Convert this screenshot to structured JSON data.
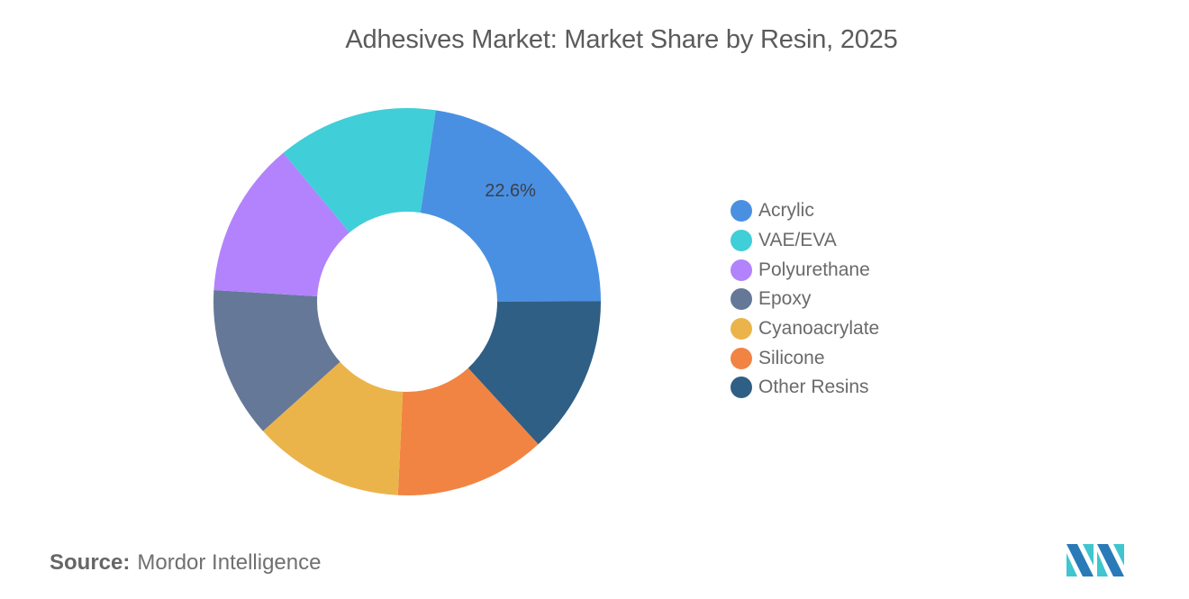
{
  "title": "Adhesives Market: Market Share by Resin, 2025",
  "source": {
    "label": "Source:",
    "value": "Mordor Intelligence"
  },
  "logo": {
    "name": "mordor-intelligence-logo",
    "colors": [
      "#2a7ab8",
      "#3fc6cf"
    ]
  },
  "chart_data": {
    "type": "pie",
    "subtype": "donut",
    "title": "Adhesives Market: Market Share by Resin, 2025",
    "start_angle_deg": 8.5,
    "direction": "clockwise",
    "legend_position": "right",
    "data_labels_shown": [
      "Acrylic"
    ],
    "slices": [
      {
        "label": "Acrylic",
        "value": 22.6,
        "color": "#4a90e2",
        "data_label": "22.6%"
      },
      {
        "label": "Other Resins",
        "value": 13.2,
        "color": "#2f5f85"
      },
      {
        "label": "Silicone",
        "value": 12.6,
        "color": "#f18442"
      },
      {
        "label": "Cyanoacrylate",
        "value": 12.6,
        "color": "#ebb44a"
      },
      {
        "label": "Epoxy",
        "value": 12.6,
        "color": "#657898"
      },
      {
        "label": "Polyurethane",
        "value": 13.0,
        "color": "#b283fc"
      },
      {
        "label": "VAE/EVA",
        "value": 13.4,
        "color": "#40ced8"
      }
    ]
  },
  "legend": [
    {
      "label": "Acrylic",
      "color": "#4a90e2"
    },
    {
      "label": "VAE/EVA",
      "color": "#40ced8"
    },
    {
      "label": "Polyurethane",
      "color": "#b283fc"
    },
    {
      "label": "Epoxy",
      "color": "#657898"
    },
    {
      "label": "Cyanoacrylate",
      "color": "#ebb44a"
    },
    {
      "label": "Silicone",
      "color": "#f18442"
    },
    {
      "label": "Other Resins",
      "color": "#2f5f85"
    }
  ]
}
